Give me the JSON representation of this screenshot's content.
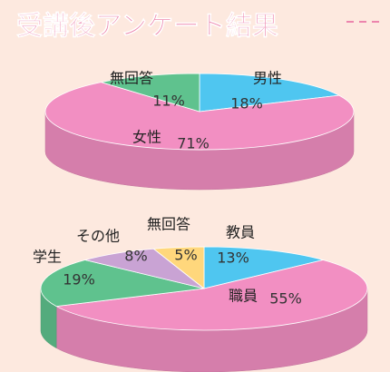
{
  "title": "受講後アンケート結果",
  "chart_data": [
    {
      "type": "pie",
      "categories": [
        "男性",
        "女性",
        "無回答"
      ],
      "values": [
        18,
        71,
        11
      ],
      "value_labels": [
        "18%",
        "71%",
        "11%"
      ],
      "colors": [
        "#4fc6f0",
        "#f28fc2",
        "#5fc28e"
      ]
    },
    {
      "type": "pie",
      "categories": [
        "教員",
        "職員",
        "学生",
        "その他",
        "無回答"
      ],
      "values": [
        13,
        55,
        19,
        8,
        5
      ],
      "value_labels": [
        "13%",
        "55%",
        "19%",
        "8%",
        "5%"
      ],
      "colors": [
        "#4fc6f0",
        "#f28fc2",
        "#5fc28e",
        "#c9a3d4",
        "#ffd77c"
      ]
    }
  ]
}
